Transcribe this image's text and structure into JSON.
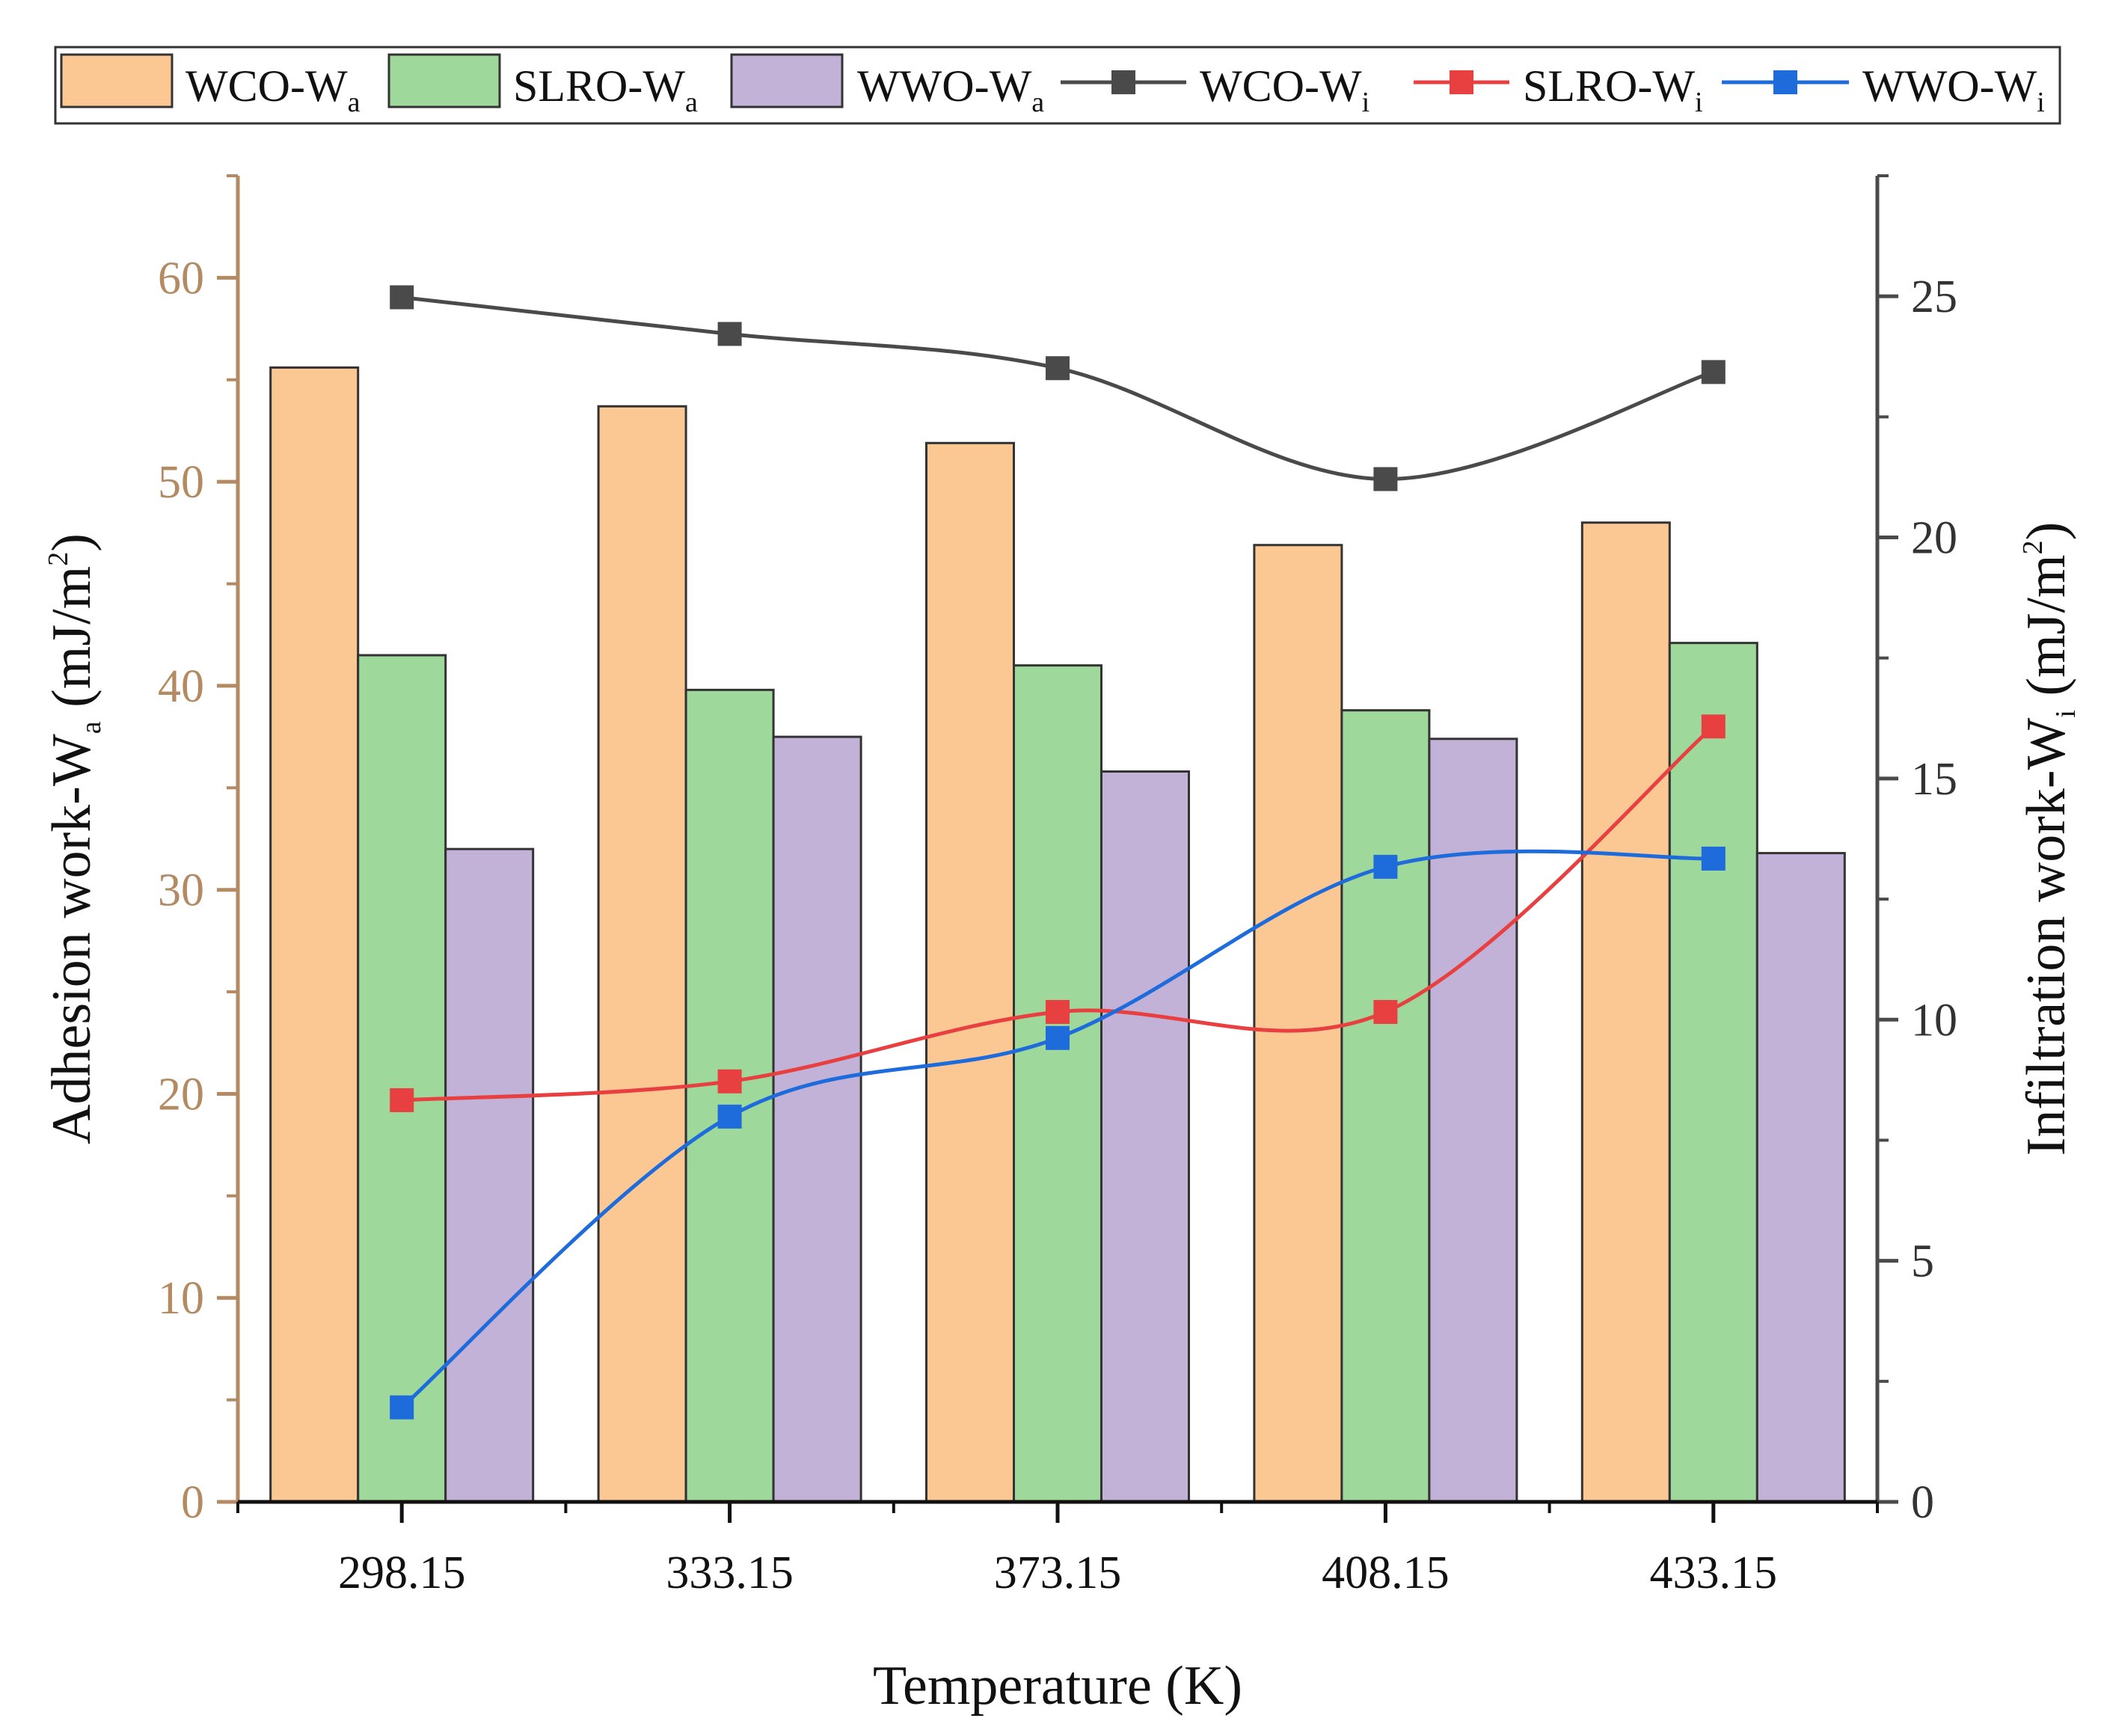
{
  "chart_data": {
    "type": "bar+line",
    "categories": [
      "298.15",
      "333.15",
      "373.15",
      "408.15",
      "433.15"
    ],
    "xlabel": "Temperature (K)",
    "ylabel_left": {
      "main": "Adhesion work-W",
      "sub": "a",
      "unit_pre": " (mJ/m",
      "sup": "2",
      "unit_post": ")"
    },
    "ylabel_right": {
      "main": "Infiltration work-W",
      "sub": "i",
      "unit_pre": " (mJ/m",
      "sup": "2",
      "unit_post": ")"
    },
    "ylim_left": [
      0,
      65
    ],
    "ylim_right": [
      0,
      27.5
    ],
    "yticks_left": [
      "0",
      "10",
      "20",
      "30",
      "40",
      "50",
      "60"
    ],
    "yticks_right": [
      "0",
      "5",
      "10",
      "15",
      "20",
      "25"
    ],
    "bar_series": [
      {
        "name": "WCO-W",
        "sub": "a",
        "color": "#fbc894",
        "values": [
          55.6,
          53.7,
          51.9,
          46.9,
          48.0
        ]
      },
      {
        "name": "SLRO-W",
        "sub": "a",
        "color": "#9fd89b",
        "values": [
          41.5,
          39.8,
          41.0,
          38.8,
          42.1
        ]
      },
      {
        "name": "WWO-W",
        "sub": "a",
        "color": "#c2b2d7",
        "values": [
          32.0,
          37.5,
          35.8,
          37.4,
          31.8
        ]
      }
    ],
    "line_series": [
      {
        "name": "WCO-W",
        "sub": "i",
        "color": "#4a4a4a",
        "values": [
          24.98,
          24.22,
          23.51,
          21.21,
          23.43
        ]
      },
      {
        "name": "SLRO-W",
        "sub": "i",
        "color": "#e84040",
        "values": [
          8.33,
          8.72,
          10.16,
          10.16,
          16.08
        ]
      },
      {
        "name": "WWO-W",
        "sub": "i",
        "color": "#1e6bdc",
        "values": [
          1.96,
          7.99,
          9.62,
          13.17,
          13.34
        ]
      }
    ],
    "legend_position": "top"
  }
}
